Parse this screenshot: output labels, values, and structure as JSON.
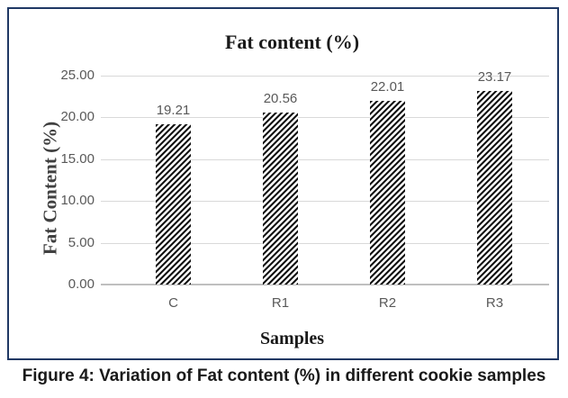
{
  "figure_caption": "Figure 4: Variation of Fat content (%) in different cookie samples",
  "chart_data": {
    "type": "bar",
    "title": "Fat content (%)",
    "xlabel": "Samples",
    "ylabel": "Fat Content (%)",
    "categories": [
      "C",
      "R1",
      "R2",
      "R3"
    ],
    "values": [
      19.21,
      20.56,
      22.01,
      23.17
    ],
    "data_labels": [
      "19.21",
      "20.56",
      "22.01",
      "23.17"
    ],
    "yticks": [
      {
        "value": 0,
        "label": "0.00"
      },
      {
        "value": 5,
        "label": "5.00"
      },
      {
        "value": 10,
        "label": "10.00"
      },
      {
        "value": 15,
        "label": "15.00"
      },
      {
        "value": 20,
        "label": "20.00"
      },
      {
        "value": 25,
        "label": "25.00"
      }
    ],
    "ylim": [
      0,
      25
    ],
    "grid": true,
    "legend": false,
    "bar_style": "diagonal-hatch",
    "colors": {
      "frame_border": "#1F3864",
      "gridline": "#D9D9D9",
      "axis_line": "#BFBFBF",
      "tick_text": "#595959",
      "data_label_text": "#595959",
      "hatch": "#141414",
      "title_text": "#1A1A1A",
      "axis_title_text": "#404040",
      "caption_text": "#1A1A1A"
    }
  }
}
